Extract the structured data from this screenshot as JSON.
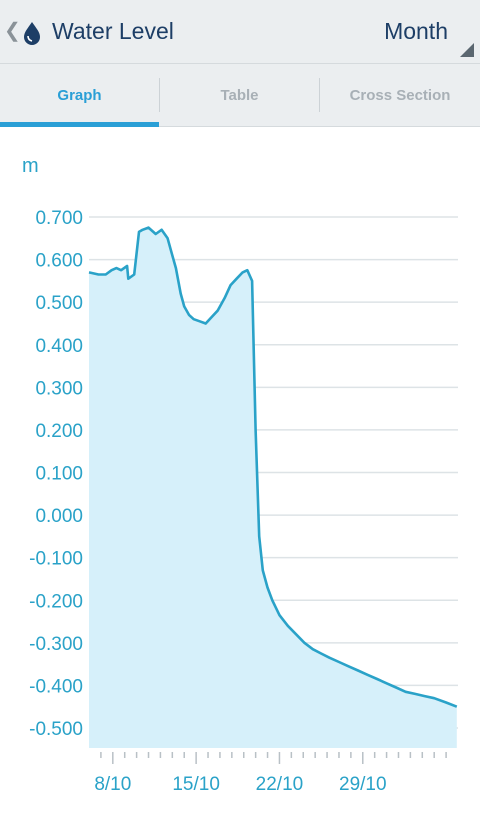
{
  "header": {
    "title": "Water Level",
    "period": "Month"
  },
  "tabs": [
    {
      "label": "Graph",
      "active": true
    },
    {
      "label": "Table",
      "active": false
    },
    {
      "label": "Cross Section",
      "active": false
    }
  ],
  "colors": {
    "accent": "#2a9fd6",
    "line": "#2aa2c8",
    "fill": "#d6f0fa",
    "title": "#1d3e66"
  },
  "chart_data": {
    "type": "area",
    "ylabel": "m",
    "ylim": [
      -0.5,
      0.7
    ],
    "yticks": [
      "0.700",
      "0.600",
      "0.500",
      "0.400",
      "0.300",
      "0.200",
      "0.100",
      "0.000",
      "-0.100",
      "-0.200",
      "-0.300",
      "-0.400",
      "-0.500"
    ],
    "xticks": [
      {
        "label": "8/10",
        "day": 8
      },
      {
        "label": "15/10",
        "day": 15
      },
      {
        "label": "22/10",
        "day": 22
      },
      {
        "label": "29/10",
        "day": 29
      }
    ],
    "xlim_days": [
      6,
      37
    ],
    "grid": true,
    "series": [
      {
        "x": [
          6,
          6.8,
          7.4,
          7.9,
          8.3,
          8.7,
          9.2,
          9.3,
          9.8,
          10.2,
          10.5,
          11,
          11.6,
          12.1,
          12.6,
          13,
          13.3,
          13.7,
          14,
          14.4,
          14.8,
          15.3,
          15.8,
          16.3,
          16.8,
          17.4,
          17.9,
          18.4,
          18.9,
          19.3,
          19.7,
          20,
          20.3,
          20.6,
          21,
          21.4,
          22,
          22.7,
          23.4,
          24.1,
          24.8,
          25.5,
          26.2,
          27,
          27.8,
          28.6,
          29.4,
          30.2,
          31,
          31.8,
          32.6,
          33.4,
          34.2,
          35,
          36,
          36.9
        ],
        "y": [
          0.57,
          0.565,
          0.565,
          0.575,
          0.58,
          0.575,
          0.585,
          0.555,
          0.565,
          0.665,
          0.67,
          0.675,
          0.66,
          0.67,
          0.65,
          0.61,
          0.58,
          0.52,
          0.49,
          0.47,
          0.46,
          0.455,
          0.45,
          0.465,
          0.48,
          0.51,
          0.54,
          0.555,
          0.57,
          0.575,
          0.55,
          0.2,
          -0.05,
          -0.13,
          -0.17,
          -0.2,
          -0.235,
          -0.26,
          -0.28,
          -0.3,
          -0.315,
          -0.325,
          -0.335,
          -0.345,
          -0.355,
          -0.365,
          -0.375,
          -0.385,
          -0.395,
          -0.405,
          -0.415,
          -0.42,
          -0.425,
          -0.43,
          -0.44,
          -0.45
        ]
      }
    ]
  }
}
